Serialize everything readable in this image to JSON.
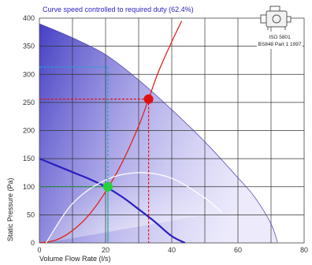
{
  "chart_data": {
    "type": "line",
    "annotation": "Curve speed controlled to required duty (62.4%)",
    "xlabel": "Volume Flow Rate (l/s)",
    "ylabel": "Static Pressure (Pa)",
    "xlim": [
      0,
      80
    ],
    "ylim": [
      0,
      400
    ],
    "xticks": [
      0,
      20,
      40,
      60,
      80
    ],
    "yticks": [
      0,
      50,
      100,
      150,
      200,
      250,
      300,
      350,
      400
    ],
    "grid": true,
    "standards": [
      "ISO 5801",
      "BS848 Part 1 1997"
    ],
    "series": [
      {
        "role": "fan-curve-full-speed",
        "color": "#4c3fb5",
        "x": [
          0,
          10,
          20,
          30,
          40,
          50,
          60,
          65,
          70,
          72
        ],
        "y": [
          390,
          365,
          335,
          290,
          237,
          180,
          116,
          82,
          34,
          0
        ]
      },
      {
        "role": "fan-curve-controlled-speed",
        "color": "#2a1fc0",
        "x": [
          0,
          5,
          10,
          15,
          20,
          25,
          30,
          35,
          40,
          44
        ],
        "y": [
          150,
          138,
          126,
          114,
          100,
          82,
          60,
          37,
          12,
          0
        ]
      },
      {
        "role": "system-curve",
        "color": "#e02418",
        "x": [
          0,
          5,
          10,
          15,
          20,
          25,
          30,
          33,
          36,
          40,
          43
        ],
        "y": [
          0,
          5,
          22,
          50,
          91,
          143,
          208,
          256,
          305,
          358,
          395
        ]
      },
      {
        "role": "efficiency-envelope",
        "color": "#ffffff",
        "x": [
          2,
          10,
          20,
          30,
          40,
          50,
          55
        ],
        "y": [
          0,
          70,
          112,
          125,
          115,
          80,
          55
        ]
      }
    ],
    "points": [
      {
        "role": "full-speed-operating-point",
        "x": 33,
        "y": 256,
        "color": "#e01010"
      },
      {
        "role": "controlled-duty-point",
        "x": 20.7,
        "y": 100,
        "color": "#22d43a"
      }
    ],
    "guides": [
      {
        "from_x": 33,
        "from_y": 256,
        "color": "#e01010"
      },
      {
        "from_x": 20.7,
        "from_y": 100,
        "color": "#18a838"
      },
      {
        "from_x": 20.7,
        "from_y": 313,
        "color": "#1aa8c8"
      }
    ]
  }
}
